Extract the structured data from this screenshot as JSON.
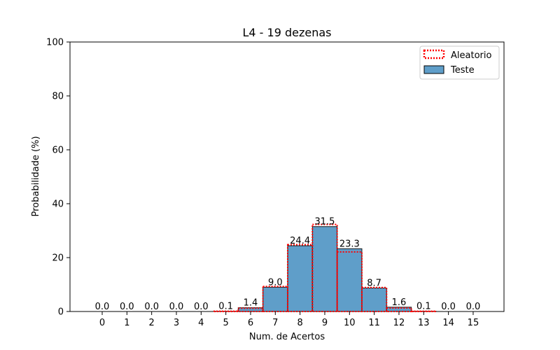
{
  "chart_data": {
    "type": "bar",
    "title": "L4 - 19 dezenas",
    "xlabel": "Num. de Acertos",
    "ylabel": "Probabilidade (%)",
    "ylim": [
      0,
      100
    ],
    "yticks": [
      0,
      20,
      40,
      60,
      80,
      100
    ],
    "categories": [
      "0",
      "1",
      "2",
      "3",
      "4",
      "5",
      "6",
      "7",
      "8",
      "9",
      "10",
      "11",
      "12",
      "13",
      "14",
      "15"
    ],
    "series": [
      {
        "name": "Aleatorio",
        "style": "dotted-outline",
        "color": "#ff0000",
        "values": [
          0.0,
          0.0,
          0.0,
          0.0,
          0.0,
          0.1,
          1.2,
          9.3,
          24.8,
          32.3,
          22.1,
          8.9,
          1.3,
          0.1,
          0.0,
          0.0
        ]
      },
      {
        "name": "Teste",
        "style": "filled",
        "color": "#5f9ec9",
        "values": [
          0.0,
          0.0,
          0.0,
          0.0,
          0.0,
          0.1,
          1.4,
          9.0,
          24.4,
          31.5,
          23.3,
          8.7,
          1.6,
          0.1,
          0.0,
          0.0
        ],
        "labels": [
          "0.0",
          "0.0",
          "0.0",
          "0.0",
          "0.0",
          "0.1",
          "1.4",
          "9.0",
          "24.4",
          "31.5",
          "23.3",
          "8.7",
          "1.6",
          "0.1",
          "0.0",
          "0.0"
        ]
      }
    ],
    "legend": {
      "position": "top-right"
    }
  }
}
